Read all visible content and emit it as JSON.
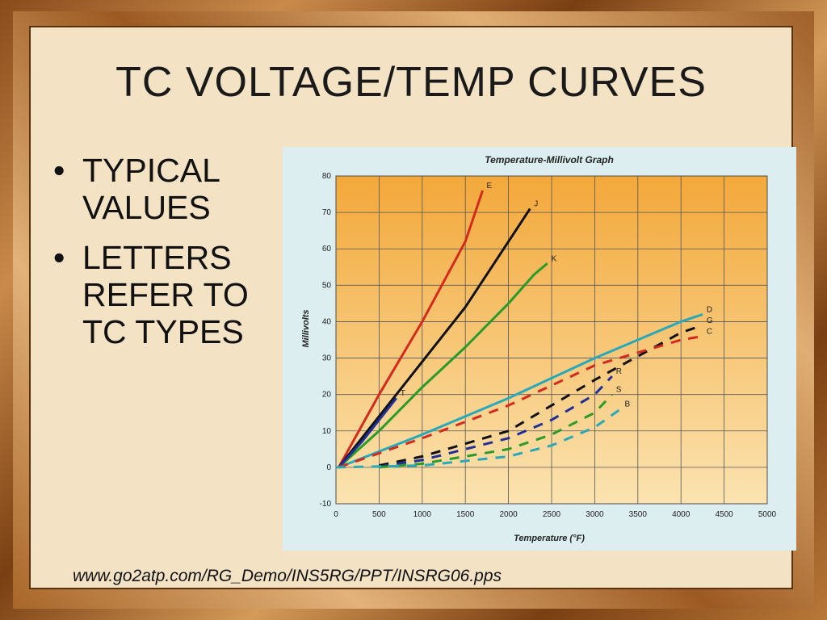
{
  "slide": {
    "title": "TC VOLTAGE/TEMP CURVES",
    "bullets": [
      "TYPICAL VALUES",
      "LETTERS REFER TO TC TYPES"
    ],
    "footer": "www.go2atp.com/RG_Demo/INS5RG/PPT/INSRG06.pps"
  },
  "chart_data": {
    "type": "line",
    "title": "Temperature-Millivolt Graph",
    "xlabel": "Temperature (°F)",
    "ylabel": "Millivolts",
    "xlim": [
      0,
      5000
    ],
    "ylim": [
      -10,
      80
    ],
    "xticks": [
      0,
      500,
      1000,
      1500,
      2000,
      2500,
      3000,
      3500,
      4000,
      4500,
      5000
    ],
    "yticks": [
      -10,
      0,
      10,
      20,
      30,
      40,
      50,
      60,
      70,
      80
    ],
    "grid": true,
    "series": [
      {
        "name": "E",
        "color": "#d42a1e",
        "dashed": false,
        "x": [
          32,
          500,
          1000,
          1500,
          1700
        ],
        "y": [
          0,
          20,
          40,
          62,
          76
        ]
      },
      {
        "name": "J",
        "color": "#111111",
        "dashed": false,
        "x": [
          32,
          500,
          1000,
          1500,
          2000,
          2250
        ],
        "y": [
          0,
          14,
          29,
          44,
          62,
          71
        ]
      },
      {
        "name": "K",
        "color": "#2a9a2a",
        "dashed": false,
        "x": [
          32,
          500,
          1000,
          1500,
          2000,
          2300,
          2450
        ],
        "y": [
          0,
          10,
          22,
          33,
          45,
          53,
          56
        ]
      },
      {
        "name": "T",
        "color": "#1f2f9a",
        "dashed": false,
        "x": [
          32,
          300,
          500,
          700
        ],
        "y": [
          0,
          7,
          13,
          19
        ]
      },
      {
        "name": "D",
        "color": "#28a8b8",
        "dashed": false,
        "x": [
          32,
          1000,
          2000,
          3000,
          4000,
          4250
        ],
        "y": [
          0,
          9,
          19,
          30,
          40,
          42
        ]
      },
      {
        "name": "G",
        "color": "#111111",
        "dashed": true,
        "x": [
          500,
          1000,
          2000,
          3000,
          4000,
          4250
        ],
        "y": [
          0.5,
          3,
          10,
          24,
          37,
          39
        ]
      },
      {
        "name": "C",
        "color": "#d42a1e",
        "dashed": true,
        "x": [
          32,
          1000,
          2000,
          3000,
          4000,
          4250
        ],
        "y": [
          0,
          8,
          17,
          28,
          35,
          36
        ]
      },
      {
        "name": "R",
        "color": "#1f2f9a",
        "dashed": true,
        "x": [
          500,
          1000,
          2000,
          2500,
          3000,
          3200
        ],
        "y": [
          0.2,
          2,
          8,
          13,
          20,
          25
        ]
      },
      {
        "name": "S",
        "color": "#2a9a2a",
        "dashed": true,
        "x": [
          500,
          1000,
          2000,
          2500,
          3000,
          3200
        ],
        "y": [
          0,
          1,
          5,
          9,
          15,
          20
        ]
      },
      {
        "name": "B",
        "color": "#28a8b8",
        "dashed": true,
        "x": [
          0,
          1000,
          2000,
          2500,
          3000,
          3300
        ],
        "y": [
          0,
          0.5,
          3,
          6,
          11,
          16
        ]
      }
    ]
  }
}
